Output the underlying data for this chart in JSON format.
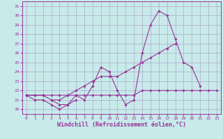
{
  "background_color": "#c8eaea",
  "grid_color": "#aaaacc",
  "line_color": "#993399",
  "xlabel": "Windchill (Refroidissement éolien,°C)",
  "xlabel_fontsize": 6.0,
  "ylim": [
    19.5,
    31.5
  ],
  "xlim": [
    -0.5,
    23.5
  ],
  "yticks": [
    20,
    21,
    22,
    23,
    24,
    25,
    26,
    27,
    28,
    29,
    30,
    31
  ],
  "xticks": [
    0,
    1,
    2,
    3,
    4,
    5,
    6,
    7,
    8,
    9,
    10,
    11,
    12,
    13,
    14,
    15,
    16,
    17,
    18,
    19,
    20,
    21,
    22,
    23
  ],
  "tick_fontsize": 4.5,
  "series": [
    [
      21.5,
      21.0,
      21.0,
      20.5,
      20.0,
      20.5,
      21.5,
      21.0,
      22.5,
      24.5,
      24.0,
      22.0,
      20.5,
      21.0,
      26.0,
      29.0,
      30.5,
      30.0,
      27.5,
      25.0,
      24.5,
      22.5,
      null,
      null
    ],
    [
      21.5,
      null,
      null,
      21.0,
      20.5,
      20.5,
      21.0,
      null,
      null,
      null,
      null,
      null,
      null,
      null,
      null,
      null,
      null,
      null,
      null,
      null,
      null,
      null,
      null,
      null
    ],
    [
      21.5,
      21.5,
      21.5,
      21.0,
      21.0,
      21.5,
      22.0,
      22.5,
      23.0,
      23.5,
      23.5,
      23.5,
      24.0,
      24.5,
      25.0,
      25.5,
      26.0,
      26.5,
      27.0,
      null,
      null,
      null,
      null,
      null
    ],
    [
      21.5,
      21.5,
      21.5,
      21.5,
      21.5,
      21.5,
      21.5,
      21.5,
      21.5,
      21.5,
      21.5,
      21.5,
      21.5,
      21.5,
      22.0,
      22.0,
      22.0,
      22.0,
      22.0,
      22.0,
      22.0,
      22.0,
      22.0,
      22.0
    ]
  ]
}
